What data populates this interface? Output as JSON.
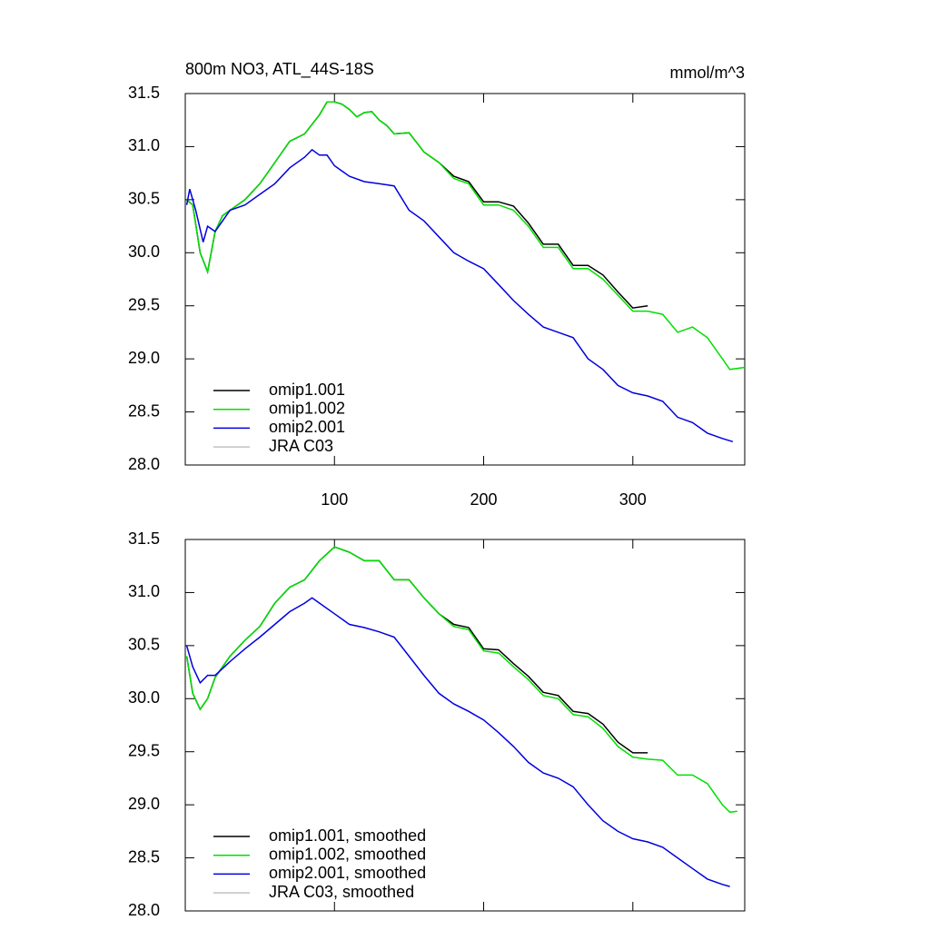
{
  "chart_data": [
    {
      "type": "line",
      "title": "800m NO3, ATL_44S-18S",
      "right_title": "mmol/m^3",
      "xlim": [
        0,
        375
      ],
      "xticks": [
        100,
        200,
        300
      ],
      "show_xtick_labels": true,
      "ylim": [
        28,
        31.5
      ],
      "yticks": [
        {
          "value": 28,
          "label": "28.0"
        },
        28.5,
        {
          "value": 29,
          "label": "29.0"
        },
        29.5,
        {
          "value": 30,
          "label": "30.0"
        },
        30.5,
        {
          "value": 31,
          "label": "31.0"
        },
        31.5
      ],
      "legend": "lower left",
      "series": [
        {
          "name": "omip1.001",
          "color": "#000000",
          "x": [
            1,
            5,
            10,
            15,
            20,
            25,
            30,
            40,
            50,
            60,
            70,
            80,
            90,
            95,
            100,
            105,
            110,
            115,
            120,
            125,
            130,
            135,
            140,
            150,
            160,
            170,
            180,
            190,
            200,
            210,
            220,
            230,
            240,
            250,
            260,
            270,
            280,
            290,
            300,
            310
          ],
          "values": [
            30.5,
            30.45,
            30.0,
            29.82,
            30.2,
            30.35,
            30.4,
            30.5,
            30.65,
            30.85,
            31.05,
            31.12,
            31.3,
            31.42,
            31.42,
            31.4,
            31.35,
            31.28,
            31.32,
            31.33,
            31.25,
            31.2,
            31.12,
            31.13,
            30.95,
            30.85,
            30.72,
            30.67,
            30.48,
            30.48,
            30.44,
            30.28,
            30.08,
            30.08,
            29.88,
            29.88,
            29.79,
            29.63,
            29.48,
            29.5
          ]
        },
        {
          "name": "omip1.002",
          "color": "#00e000",
          "x": [
            1,
            5,
            10,
            15,
            20,
            25,
            30,
            40,
            50,
            60,
            70,
            80,
            90,
            95,
            100,
            105,
            110,
            115,
            120,
            125,
            130,
            135,
            140,
            150,
            160,
            170,
            180,
            190,
            200,
            210,
            220,
            230,
            240,
            250,
            260,
            270,
            280,
            290,
            300,
            310,
            320,
            330,
            340,
            350,
            360,
            365,
            375
          ],
          "values": [
            30.5,
            30.45,
            30.0,
            29.82,
            30.2,
            30.35,
            30.4,
            30.5,
            30.65,
            30.85,
            31.05,
            31.12,
            31.3,
            31.42,
            31.42,
            31.4,
            31.35,
            31.28,
            31.32,
            31.33,
            31.25,
            31.2,
            31.12,
            31.13,
            30.95,
            30.85,
            30.7,
            30.65,
            30.45,
            30.45,
            30.4,
            30.25,
            30.05,
            30.05,
            29.85,
            29.85,
            29.75,
            29.6,
            29.45,
            29.45,
            29.42,
            29.25,
            29.3,
            29.2,
            29.0,
            28.9,
            28.92
          ]
        },
        {
          "name": "omip2.001",
          "color": "#0000e0",
          "x": [
            1,
            3,
            7,
            12,
            15,
            20,
            25,
            30,
            40,
            50,
            60,
            70,
            80,
            85,
            90,
            95,
            100,
            110,
            120,
            130,
            140,
            150,
            160,
            170,
            180,
            190,
            200,
            210,
            220,
            230,
            240,
            250,
            260,
            270,
            280,
            290,
            300,
            310,
            320,
            330,
            340,
            350,
            360,
            367
          ],
          "values": [
            30.45,
            30.6,
            30.4,
            30.1,
            30.25,
            30.2,
            30.3,
            30.4,
            30.45,
            30.55,
            30.65,
            30.8,
            30.9,
            30.97,
            30.92,
            30.92,
            30.82,
            30.72,
            30.67,
            30.65,
            30.63,
            30.4,
            30.3,
            30.15,
            30.0,
            29.92,
            29.85,
            29.7,
            29.55,
            29.42,
            29.3,
            29.25,
            29.2,
            29.0,
            28.9,
            28.75,
            28.68,
            28.65,
            28.6,
            28.45,
            28.4,
            28.3,
            28.25,
            28.22
          ]
        },
        {
          "name": "JRA C03",
          "color": "#c0c0c0",
          "x": [],
          "values": []
        }
      ]
    },
    {
      "type": "line",
      "xlim": [
        0,
        375
      ],
      "xticks": [
        100,
        200,
        300
      ],
      "show_xtick_labels": false,
      "ylim": [
        28,
        31.5
      ],
      "yticks": [
        {
          "value": 28,
          "label": "28.0"
        },
        28.5,
        {
          "value": 29,
          "label": "29.0"
        },
        29.5,
        {
          "value": 30,
          "label": "30.0"
        },
        30.5,
        {
          "value": 31,
          "label": "31.0"
        },
        31.5
      ],
      "legend": "lower left",
      "series": [
        {
          "name": "omip1.001, smoothed",
          "color": "#000000",
          "x": [
            1,
            5,
            10,
            15,
            20,
            30,
            40,
            50,
            60,
            70,
            80,
            90,
            100,
            110,
            120,
            130,
            140,
            150,
            160,
            170,
            180,
            190,
            200,
            210,
            220,
            230,
            240,
            250,
            260,
            270,
            280,
            290,
            300,
            310
          ],
          "values": [
            30.4,
            30.05,
            29.9,
            30.0,
            30.2,
            30.4,
            30.55,
            30.68,
            30.9,
            31.05,
            31.12,
            31.3,
            31.43,
            31.38,
            31.3,
            31.3,
            31.12,
            31.12,
            30.95,
            30.8,
            30.7,
            30.67,
            30.47,
            30.46,
            30.33,
            30.21,
            30.06,
            30.03,
            29.88,
            29.86,
            29.76,
            29.59,
            29.49,
            29.49
          ]
        },
        {
          "name": "omip1.002, smoothed",
          "color": "#00e000",
          "x": [
            1,
            5,
            10,
            15,
            20,
            30,
            40,
            50,
            60,
            70,
            80,
            90,
            100,
            110,
            120,
            130,
            140,
            150,
            160,
            170,
            180,
            190,
            200,
            210,
            220,
            230,
            240,
            250,
            260,
            270,
            280,
            290,
            300,
            310,
            320,
            330,
            340,
            350,
            360,
            365,
            370
          ],
          "values": [
            30.4,
            30.05,
            29.9,
            30.0,
            30.2,
            30.4,
            30.55,
            30.68,
            30.9,
            31.05,
            31.12,
            31.3,
            31.43,
            31.38,
            31.3,
            31.3,
            31.12,
            31.12,
            30.95,
            30.8,
            30.68,
            30.65,
            30.45,
            30.43,
            30.3,
            30.18,
            30.03,
            30.0,
            29.85,
            29.83,
            29.72,
            29.55,
            29.45,
            29.43,
            29.42,
            29.28,
            29.28,
            29.2,
            29.0,
            28.93,
            28.94
          ]
        },
        {
          "name": "omip2.001, smoothed",
          "color": "#0000e0",
          "x": [
            1,
            5,
            10,
            15,
            20,
            30,
            40,
            50,
            60,
            70,
            80,
            85,
            90,
            100,
            110,
            120,
            130,
            140,
            150,
            160,
            170,
            180,
            190,
            200,
            210,
            220,
            230,
            240,
            250,
            260,
            270,
            280,
            290,
            300,
            310,
            320,
            330,
            340,
            350,
            360,
            365
          ],
          "values": [
            30.5,
            30.3,
            30.15,
            30.22,
            30.22,
            30.35,
            30.47,
            30.58,
            30.7,
            30.82,
            30.9,
            30.95,
            30.9,
            30.8,
            30.7,
            30.67,
            30.63,
            30.58,
            30.4,
            30.22,
            30.05,
            29.95,
            29.88,
            29.8,
            29.68,
            29.55,
            29.4,
            29.3,
            29.25,
            29.17,
            29.0,
            28.85,
            28.75,
            28.68,
            28.65,
            28.6,
            28.5,
            28.4,
            28.3,
            28.25,
            28.23
          ]
        },
        {
          "name": "JRA C03, smoothed",
          "color": "#c0c0c0",
          "x": [],
          "values": []
        }
      ]
    }
  ]
}
